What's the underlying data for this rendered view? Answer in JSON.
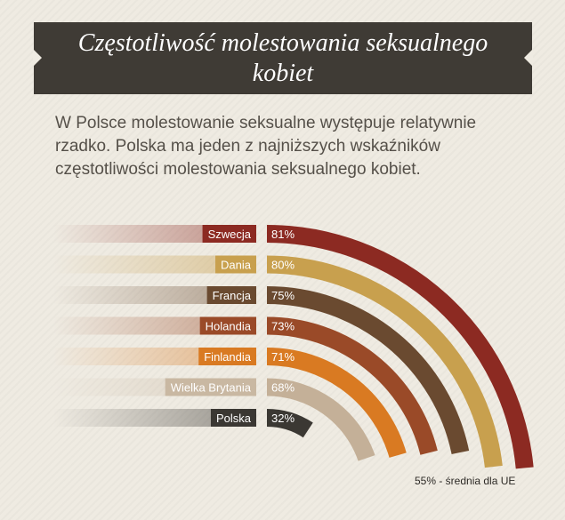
{
  "header": {
    "title": "Częstotliwość molestowania seksualnego kobiet",
    "subtitle": "W Polsce molestowanie seksualne występuje relatywnie rzadko. Polska ma jeden z najniższych wskaźników częstotliwości molestowania seksualnego kobiet."
  },
  "chart_data": {
    "type": "bar",
    "title": "Częstotliwość molestowania seksualnego kobiet",
    "categories": [
      "Szwecja",
      "Dania",
      "Francja",
      "Holandia",
      "Finlandia",
      "Wielka Brytania",
      "Polska"
    ],
    "series": [
      {
        "values": [
          81,
          80,
          75,
          73,
          71,
          68,
          32
        ]
      }
    ],
    "value_labels": [
      "81%",
      "80%",
      "75%",
      "73%",
      "71%",
      "68%",
      "32%"
    ],
    "colors": [
      "#8c2a22",
      "#c8a04e",
      "#6a4a30",
      "#9a4a28",
      "#d97a22",
      "#c4b098",
      "#3b3833"
    ],
    "label_colors": [
      "#8c2a22",
      "#c8a04e",
      "#6a4a30",
      "#9a4a28",
      "#d97a22",
      "#c9b8a2",
      "#3b3833"
    ],
    "unit": "%",
    "ylim": [
      0,
      100
    ],
    "annotation": "55% - średnia dla UE"
  }
}
